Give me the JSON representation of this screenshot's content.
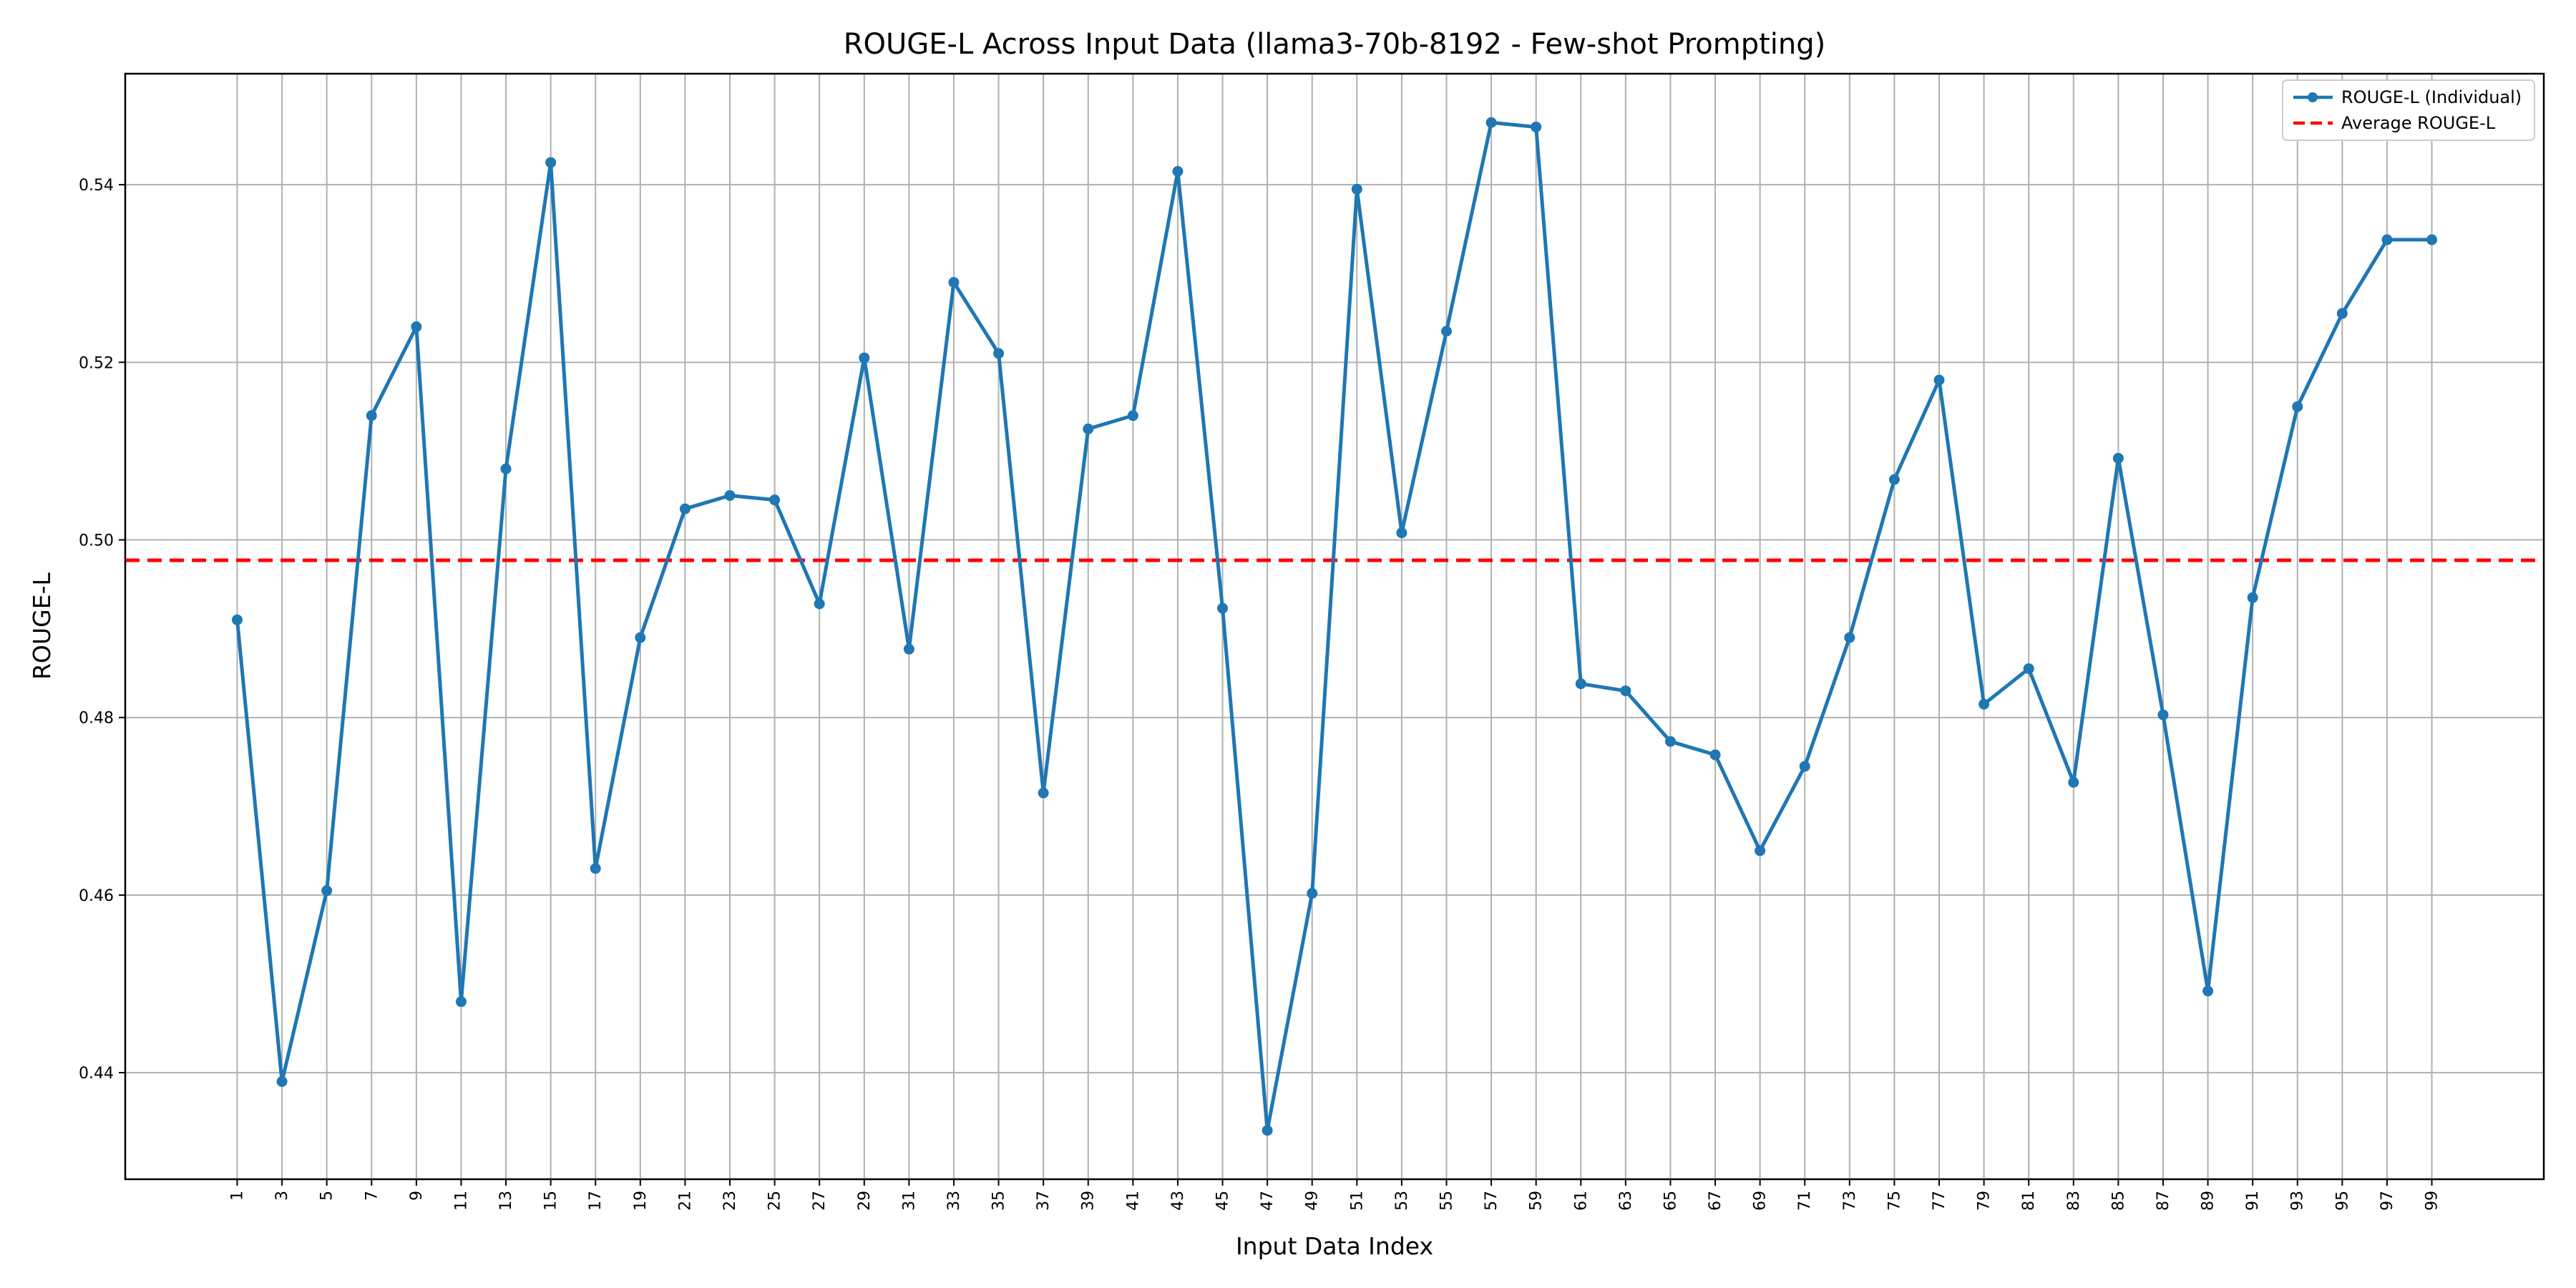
{
  "chart_data": {
    "type": "line",
    "title": "ROUGE-L Across Input Data (llama3-70b-8192 - Few-shot Prompting)",
    "xlabel": "Input Data Index",
    "ylabel": "ROUGE-L",
    "xlim": [
      -4,
      104
    ],
    "ylim": [
      0.428,
      0.5525
    ],
    "grid": true,
    "legend_position": "top-right",
    "x": [
      1,
      3,
      5,
      7,
      9,
      11,
      13,
      15,
      17,
      19,
      21,
      23,
      25,
      27,
      29,
      31,
      33,
      35,
      37,
      39,
      41,
      43,
      45,
      47,
      49,
      51,
      53,
      55,
      57,
      59,
      61,
      63,
      65,
      67,
      69,
      71,
      73,
      75,
      77,
      79,
      81,
      83,
      85,
      87,
      89,
      91,
      93,
      95,
      97,
      99
    ],
    "x_tick_labels": [
      "1",
      "3",
      "5",
      "7",
      "9",
      "11",
      "13",
      "15",
      "17",
      "19",
      "21",
      "23",
      "25",
      "27",
      "29",
      "31",
      "33",
      "35",
      "37",
      "39",
      "41",
      "43",
      "45",
      "47",
      "49",
      "51",
      "53",
      "55",
      "57",
      "59",
      "61",
      "63",
      "65",
      "67",
      "69",
      "71",
      "73",
      "75",
      "77",
      "79",
      "81",
      "83",
      "85",
      "87",
      "89",
      "91",
      "93",
      "95",
      "97",
      "99"
    ],
    "y_ticks": [
      0.44,
      0.46,
      0.48,
      0.5,
      0.52,
      0.54
    ],
    "y_tick_labels": [
      "0.44",
      "0.46",
      "0.48",
      "0.50",
      "0.52",
      "0.54"
    ],
    "series": [
      {
        "name": "ROUGE-L (Individual)",
        "color": "#1f77b4",
        "style": "line-with-markers",
        "values": [
          0.491,
          0.439,
          0.4605,
          0.514,
          0.524,
          0.448,
          0.508,
          0.5425,
          0.463,
          0.489,
          0.5035,
          0.505,
          0.5045,
          0.4928,
          0.5205,
          0.4877,
          0.529,
          0.521,
          0.4715,
          0.5125,
          0.514,
          0.5415,
          0.4923,
          0.4335,
          0.4602,
          0.5395,
          0.5008,
          0.5235,
          0.547,
          0.5465,
          0.4838,
          0.483,
          0.4773,
          0.4758,
          0.465,
          0.4745,
          0.489,
          0.5068,
          0.518,
          0.4815,
          0.4855,
          0.4727,
          0.5092,
          0.4803,
          0.4492,
          0.4935,
          0.515,
          0.5255,
          0.5338,
          0.5338
        ]
      },
      {
        "name": "Average ROUGE-L",
        "color": "#ff0000",
        "style": "dashed",
        "value": 0.4977
      }
    ]
  }
}
